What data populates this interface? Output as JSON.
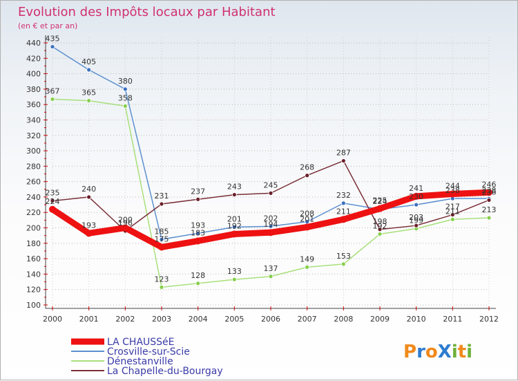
{
  "chart_data": {
    "type": "line",
    "title": "Evolution des Impôts locaux par Habitant",
    "subtitle": "(en € et par an)",
    "xlabel": "",
    "ylabel": "",
    "ylim": [
      100,
      440
    ],
    "yticks": [
      100,
      120,
      140,
      160,
      180,
      200,
      220,
      240,
      260,
      280,
      300,
      320,
      340,
      360,
      380,
      400,
      420,
      440
    ],
    "categories": [
      "2000",
      "2001",
      "2002",
      "2003",
      "2004",
      "2005",
      "2006",
      "2007",
      "2008",
      "2009",
      "2010",
      "2011",
      "2012"
    ],
    "grid": true,
    "legend_position": "bottom-left",
    "series": [
      {
        "name": "Crosville-sur-Scie",
        "color": "#5b8fcf",
        "marker": "#3a6fc0",
        "values": [
          435,
          405,
          380,
          185,
          193,
          201,
          202,
          208,
          232,
          224,
          230,
          238,
          238
        ]
      },
      {
        "name": "Dénestanville",
        "color": "#a8e07a",
        "marker": "#86cf4c",
        "values": [
          367,
          365,
          358,
          123,
          128,
          133,
          137,
          149,
          153,
          192,
          199,
          211,
          213
        ]
      },
      {
        "name": "La Chapelle-du-Bourgay",
        "color": "#7a3038",
        "marker": "#6a1f2a",
        "values": [
          235,
          240,
          196,
          231,
          237,
          243,
          245,
          268,
          287,
          198,
          203,
          217,
          236
        ]
      },
      {
        "name": "LA CHAUSSéE",
        "color": "#ee1111",
        "marker": "#ee1111",
        "values": [
          224,
          193,
          200,
          175,
          183,
          192,
          194,
          201,
          211,
          225,
          241,
          244,
          246
        ]
      }
    ],
    "legend_order": [
      "LA CHAUSSéE",
      "Crosville-sur-Scie",
      "Dénestanville",
      "La Chapelle-du-Bourgay"
    ]
  },
  "logo": {
    "text": "ProXiti",
    "letters": [
      "P",
      "r",
      "o",
      "X",
      "i",
      "t",
      "i"
    ],
    "colors": [
      "#f08a1c",
      "#2e7cd0",
      "#f08a1c",
      "#2e7cd0",
      "#6db13a",
      "#f08a1c",
      "#6db13a"
    ]
  }
}
